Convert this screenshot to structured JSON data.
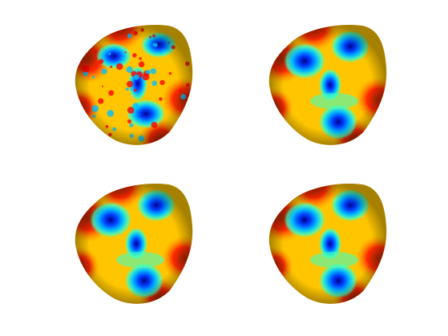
{
  "figure": {
    "panels": [
      {
        "id": "panel-1",
        "variant": "noisy"
      },
      {
        "id": "panel-2",
        "variant": "smooth"
      },
      {
        "id": "panel-3",
        "variant": "smooth"
      },
      {
        "id": "panel-4",
        "variant": "smooth"
      }
    ],
    "colormap": [
      "#00008f",
      "#0040ff",
      "#00bfff",
      "#40ffbf",
      "#ffff00",
      "#ff8000",
      "#ff0000",
      "#8f0000"
    ]
  }
}
